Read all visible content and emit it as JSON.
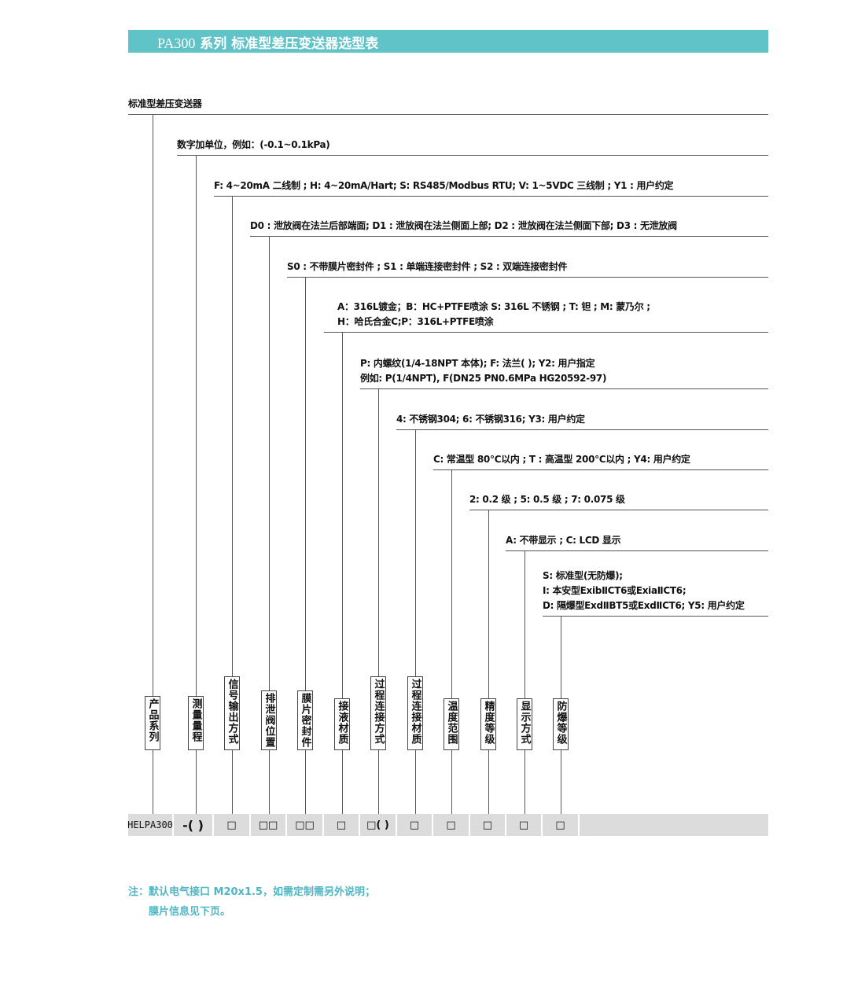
{
  "header": {
    "model": "PA300",
    "title": "系列 标准型差压变送器选型表",
    "banner_color": "#5fc3c8"
  },
  "levels": [
    {
      "text": [
        "标准型差压变送器"
      ]
    },
    {
      "text": [
        "数字加单位，例如：(-0.1~0.1kPa)"
      ]
    },
    {
      "text": [
        "F: 4~20mA 二线制 ; H:  4~20mA/Hart; S:  RS485/Modbus RTU; V: 1~5VDC 三线制 ;  Y1 : 用户约定"
      ]
    },
    {
      "text": [
        "D0 : 泄放阀在法兰后部端面; D1 : 泄放阀在法兰侧面上部; D2 : 泄放阀在法兰侧面下部; D3 : 无泄放阀"
      ]
    },
    {
      "text": [
        "S0 : 不带膜片密封件 ; S1 : 单端连接密封件 ; S2 : 双端连接密封件"
      ]
    },
    {
      "text": [
        "A：316L镀金；B：HC+PTFE喷涂  S: 316L 不锈钢 ; T: 钽 ; M: 蒙乃尔 ;",
        "H：哈氏合金C;P：316L+PTFE喷涂"
      ]
    },
    {
      "text": [
        "P: 内螺纹(1/4-18NPT 本体); F: 法兰( ); Y2: 用户指定",
        "例如: P(1/4NPT), F(DN25 PN0.6MPa HG20592-97)"
      ]
    },
    {
      "text": [
        "4: 不锈钢304; 6: 不锈钢316; Y3: 用户约定"
      ]
    },
    {
      "text": [
        "C: 常温型 80℃以内 ; T : 高温型 200℃以内 ; Y4: 用户约定"
      ]
    },
    {
      "text": [
        "2: 0.2 级 ; 5: 0.5 级 ; 7: 0.075 级"
      ]
    },
    {
      "text": [
        "A: 不带显示 ; C: LCD 显示"
      ]
    },
    {
      "text": [
        "S: 标准型(无防爆);",
        "I: 本安型ExibⅡCT6或ExiaⅡCT6;",
        "D: 隔爆型ExdⅡBT5或ExdⅡCT6; Y5: 用户约定"
      ]
    }
  ],
  "labels": [
    "产品系列",
    "测量量程",
    "信号输出方式",
    "排泄阀位置",
    "膜片密封件",
    "接液材质",
    "过程连接方式",
    "过程连接材质",
    "温度范围",
    "精度等级",
    "显示方式",
    "防爆等级"
  ],
  "codes": [
    "HELPA300",
    "-( )",
    "□",
    "□□",
    "□□",
    "□",
    "□( )",
    "□",
    "□",
    "□",
    "□",
    "□"
  ],
  "note": {
    "line1": "注：默认电气接口 M20x1.5，如需定制需另外说明；",
    "line2": "膜片信息见下页。",
    "color": "#4fb6c4"
  }
}
